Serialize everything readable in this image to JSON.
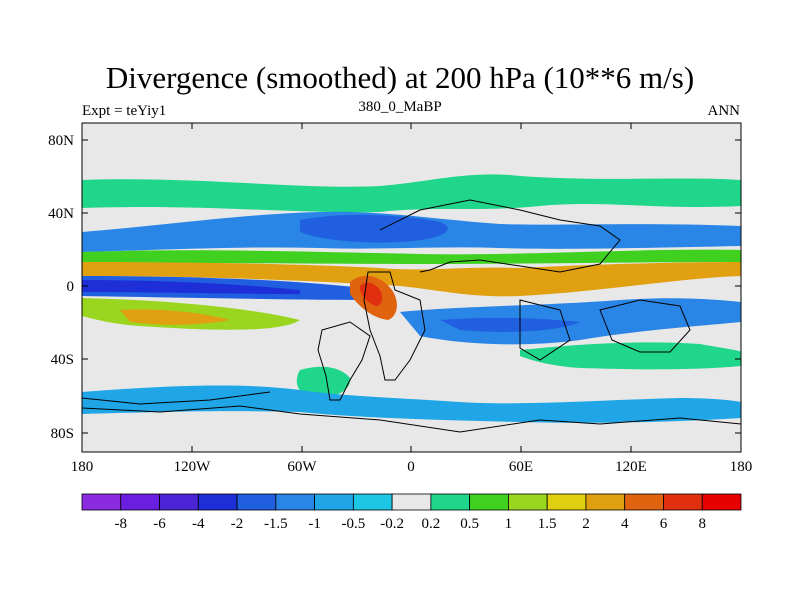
{
  "header": {
    "title": "Divergence (smoothed) at 200 hPa (10**6 m/s)",
    "left": "Expt = teYiy1",
    "center": "380_0_MaBP",
    "right": "ANN"
  },
  "axes": {
    "lat_labels": [
      "80N",
      "40N",
      "0",
      "40S",
      "80S"
    ],
    "lon_labels": [
      "180",
      "120W",
      "60W",
      "0",
      "60E",
      "120E",
      "180"
    ]
  },
  "colorbar": {
    "labels": [
      "-8",
      "-6",
      "-4",
      "-2",
      "-1.5",
      "-1",
      "-0.5",
      "-0.2",
      "0.2",
      "0.5",
      "1",
      "1.5",
      "2",
      "4",
      "6",
      "8"
    ],
    "colors": [
      "#8a2be2",
      "#6a1fe0",
      "#4b24d6",
      "#1e2fd8",
      "#1f5fe0",
      "#2a86e6",
      "#20a6e6",
      "#1ec6e6",
      "#e8e8e8",
      "#20d68a",
      "#40d020",
      "#9ad620",
      "#e0d010",
      "#e0a010",
      "#e06410",
      "#e03010",
      "#e60000"
    ]
  },
  "map": {
    "grey": "#e8e8e8",
    "bands": [
      {
        "level": "0.5",
        "lat": 55
      },
      {
        "level": "0.5",
        "lat": 28
      },
      {
        "level": "-0.5",
        "lat": 35
      },
      {
        "level": "-1",
        "lat": 32
      },
      {
        "level": "0.5",
        "lat": 15
      },
      {
        "level": "1",
        "lat": 12
      },
      {
        "level": "-1.5",
        "lat": 0
      },
      {
        "level": "-2",
        "lat": 0
      },
      {
        "level": "2",
        "lat": 5
      },
      {
        "level": "-0.5",
        "lat": -18
      },
      {
        "level": "1",
        "lat": -20
      },
      {
        "level": "-1",
        "lat": -22
      },
      {
        "level": "0.5",
        "lat": -45
      },
      {
        "level": "-0.2",
        "lat": -60
      }
    ]
  }
}
